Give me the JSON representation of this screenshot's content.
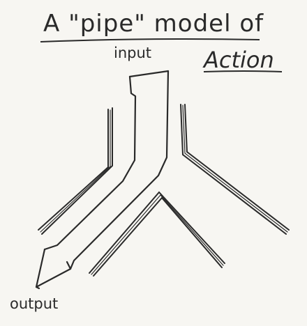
{
  "title": {
    "line1": "A \"pipe\" model of",
    "line2": "Action"
  },
  "labels": {
    "input": "input",
    "output": "output"
  },
  "colors": {
    "ink": "#2a2a2a",
    "paper": "#f7f6f2"
  }
}
